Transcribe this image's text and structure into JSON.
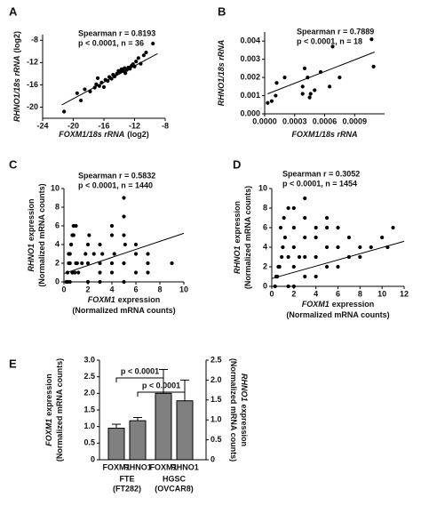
{
  "chart_data": [
    {
      "type": "scatter",
      "panel": "A",
      "annotations": [
        "Spearman r = 0.8193",
        "p < 0.0001, n = 36"
      ],
      "xlabel": [
        {
          "italic": "FOXM1/18s rRNA",
          "rest": "(log2)"
        }
      ],
      "ylabel": [
        {
          "italic": "RHNO1/18s rRNA",
          "rest": "(log2)"
        }
      ],
      "xlim": [
        -24,
        -8
      ],
      "xticks": [
        -24,
        -20,
        -16,
        -12,
        -8
      ],
      "ylim": [
        -22,
        -7
      ],
      "yticks": [
        -20,
        -16,
        -12,
        -8
      ],
      "x": [
        -21.2,
        -19.5,
        -19,
        -18.5,
        -17.8,
        -17.2,
        -17,
        -16.6,
        -16.3,
        -16,
        -15.8,
        -15.5,
        -15.3,
        -15,
        -14.8,
        -14.6,
        -14.3,
        -14.1,
        -13.9,
        -13.7,
        -13.5,
        -13.3,
        -13.2,
        -13,
        -12.8,
        -12.6,
        -12.4,
        -12.2,
        -12,
        -11.8,
        -11.5,
        -11.2,
        -10.8,
        -10.5,
        -9.6,
        -16.8
      ],
      "y": [
        -20.8,
        -17.5,
        -18.8,
        -16.8,
        -17.2,
        -16.5,
        -15.9,
        -16.2,
        -15.6,
        -16.4,
        -15.1,
        -15.3,
        -14.6,
        -14.9,
        -14.2,
        -14.5,
        -14,
        -13.5,
        -13.7,
        -13.2,
        -13.5,
        -13,
        -13.9,
        -13.3,
        -12.9,
        -13.1,
        -12.6,
        -12.3,
        -12.7,
        -11.8,
        -11.2,
        -12.2,
        -10.7,
        -10.2,
        -8.6,
        -14.8
      ],
      "trend": {
        "x": [
          -21.5,
          -9
        ],
        "y": [
          -19.6,
          -10.4
        ]
      },
      "color": "#000000"
    },
    {
      "type": "scatter",
      "panel": "B",
      "annotations": [
        "Spearman r = 0.7889",
        "p < 0.0001, n = 18"
      ],
      "xlabel": [
        {
          "italic": "FOXM1/18s rRNA"
        }
      ],
      "ylabel": [
        {
          "italic": "RHNO1/18s rRNA"
        }
      ],
      "xlim": [
        0,
        0.0012
      ],
      "xticks": [
        {
          "value": 0,
          "label": "0.0000"
        },
        {
          "value": 0.0003,
          "label": "0.0003"
        },
        {
          "value": 0.0006,
          "label": "0.0006"
        },
        {
          "value": 0.0009,
          "label": "0.0009"
        }
      ],
      "ylim": [
        0,
        0.0045
      ],
      "yticks": [
        {
          "value": 0,
          "label": "0.000"
        },
        {
          "value": 0.001,
          "label": "0.001"
        },
        {
          "value": 0.002,
          "label": "0.002"
        },
        {
          "value": 0.003,
          "label": "0.003"
        },
        {
          "value": 0.004,
          "label": "0.004"
        }
      ],
      "x": [
        3e-05,
        7e-05,
        0.00011,
        0.00012,
        0.0002,
        0.00038,
        0.00038,
        0.0004,
        0.00043,
        0.00045,
        0.00046,
        0.0005,
        0.00056,
        0.00065,
        0.00068,
        0.00075,
        0.00107,
        0.00109
      ],
      "y": [
        0.0006,
        0.0007,
        0.001,
        0.0017,
        0.002,
        0.0011,
        0.0015,
        0.0025,
        0.002,
        0.0009,
        0.0011,
        0.0013,
        0.0023,
        0.0015,
        0.0037,
        0.002,
        0.0041,
        0.0026
      ],
      "trend": {
        "x": [
          3e-05,
          0.0011
        ],
        "y": [
          0.0011,
          0.0034
        ]
      },
      "color": "#000000"
    },
    {
      "type": "scatter",
      "panel": "C",
      "annotations": [
        "Spearman r = 0.5832",
        "p < 0.0001, n = 1440"
      ],
      "xlabel": [
        {
          "italic": "FOXM1",
          "rest": "expression"
        },
        {
          "rest": "(Normalized mRNA counts)"
        }
      ],
      "ylabel": [
        {
          "italic": "RHNO1",
          "rest": "expression"
        },
        {
          "rest": "(Normalized mRNA counts)"
        }
      ],
      "xlim": [
        0,
        10
      ],
      "xticks": [
        0,
        2,
        4,
        6,
        8,
        10
      ],
      "ylim": [
        0,
        10
      ],
      "yticks": [
        0,
        2,
        4,
        6,
        8,
        10
      ],
      "x": [
        0.2,
        0.3,
        0.4,
        0.5,
        0.6,
        0.7,
        0.8,
        0.9,
        1.0,
        0.3,
        0.5,
        0.7,
        0.9,
        1.1,
        0.4,
        0.6,
        0.8,
        1.0,
        0.5,
        0.7,
        1.2,
        1.5,
        1.8,
        2.0,
        2.0,
        2.0,
        2.1,
        2.5,
        3.0,
        3.0,
        3.0,
        3.0,
        3.2,
        4.0,
        4.0,
        4.0,
        4.0,
        4.2,
        5.0,
        5.0,
        5.0,
        5.0,
        5.0,
        5.1,
        6.0,
        6.0,
        6.0,
        7.0,
        7.0,
        7.0,
        9.0
      ],
      "y": [
        0,
        1,
        2,
        3,
        4,
        5,
        6,
        1,
        2,
        0,
        0,
        1,
        1,
        2,
        3,
        4,
        5,
        6,
        2,
        1,
        1,
        2,
        3,
        0,
        2,
        4,
        5,
        3,
        0,
        1,
        2,
        4,
        3,
        1,
        2,
        5,
        6,
        3,
        0,
        2,
        5,
        7,
        9,
        4,
        1,
        3,
        4,
        1,
        2,
        3,
        2
      ],
      "trend": {
        "x": [
          0,
          10
        ],
        "y": [
          0.9,
          5.2
        ]
      },
      "color": "#000000"
    },
    {
      "type": "scatter",
      "panel": "D",
      "annotations": [
        "Spearman r = 0.3052",
        "p < 0.0001, n = 1454"
      ],
      "xlabel": [
        {
          "italic": "FOXM1",
          "rest": "expression"
        },
        {
          "rest": "(Normalized mRNA counts)"
        }
      ],
      "ylabel": [
        {
          "italic": "RHNO1",
          "rest": "expression"
        },
        {
          "rest": "(Normalized mRNA counts)"
        }
      ],
      "xlim": [
        0,
        12
      ],
      "xticks": [
        0,
        2,
        4,
        6,
        8,
        10,
        12
      ],
      "ylim": [
        0,
        10
      ],
      "yticks": [
        0,
        2,
        4,
        6,
        8,
        10
      ],
      "x": [
        0.3,
        0.5,
        0.7,
        0.9,
        1.0,
        1.2,
        0.4,
        0.6,
        0.8,
        1.1,
        1.5,
        1.5,
        1.5,
        2.0,
        2.0,
        2.0,
        2.0,
        2.0,
        2.5,
        3.0,
        3.0,
        3.0,
        3.0,
        3.0,
        4.0,
        4.0,
        4.0,
        4.0,
        5.0,
        5.0,
        5.0,
        5.0,
        6.0,
        6.0,
        6.0,
        7.0,
        7.0,
        8.0,
        8.0,
        9.0,
        10.0,
        10.5,
        11.0
      ],
      "y": [
        0,
        1,
        2,
        3,
        4,
        5,
        1,
        2,
        6,
        7,
        0,
        3,
        8,
        0,
        2,
        4,
        6,
        8,
        3,
        1,
        3,
        5,
        7,
        9,
        1,
        3,
        5,
        6,
        2,
        4,
        6,
        7,
        2,
        4,
        6,
        3,
        5,
        3,
        4,
        4,
        5,
        4,
        6
      ],
      "trend": {
        "x": [
          0,
          12
        ],
        "y": [
          0.8,
          4.6
        ]
      },
      "color": "#000000"
    },
    {
      "type": "bar",
      "panel": "E",
      "categories": [
        "FOXM1",
        "RHNO1",
        "FOXM1",
        "RHNO1"
      ],
      "groups": [
        {
          "name": "FTE",
          "sub": "(FT282)"
        },
        {
          "name": "HGSC",
          "sub": "(OVCAR8)"
        }
      ],
      "values": [
        0.95,
        0.98,
        2.0,
        1.48
      ],
      "errors": [
        0.12,
        0.08,
        0.72,
        0.52
      ],
      "axes": [
        "y",
        "y2",
        "y",
        "y2"
      ],
      "annotations": [
        "p < 0.0001",
        "p < 0.0001"
      ],
      "ylabel": [
        {
          "italic": "FOXM1",
          "rest": "expression"
        },
        {
          "rest": "(Normalized mRNA counts)"
        }
      ],
      "y2label": [
        {
          "italic": "RHNO1",
          "rest": "expression"
        },
        {
          "rest": "(Normalized mRNA counts)"
        }
      ],
      "ylim": [
        0,
        3
      ],
      "yticks": [
        0,
        0.5,
        {
          "value": 1,
          "label": "1.0"
        },
        1.5,
        {
          "value": 2,
          "label": "2.0"
        },
        2.5,
        {
          "value": 3,
          "label": "3.0"
        }
      ],
      "y2lim": [
        0,
        2.5
      ],
      "y2ticks": [
        0,
        0.5,
        {
          "value": 1,
          "label": "1.0"
        },
        1.5,
        {
          "value": 2,
          "label": "2.0"
        },
        2.5
      ],
      "color": "#808080"
    }
  ]
}
